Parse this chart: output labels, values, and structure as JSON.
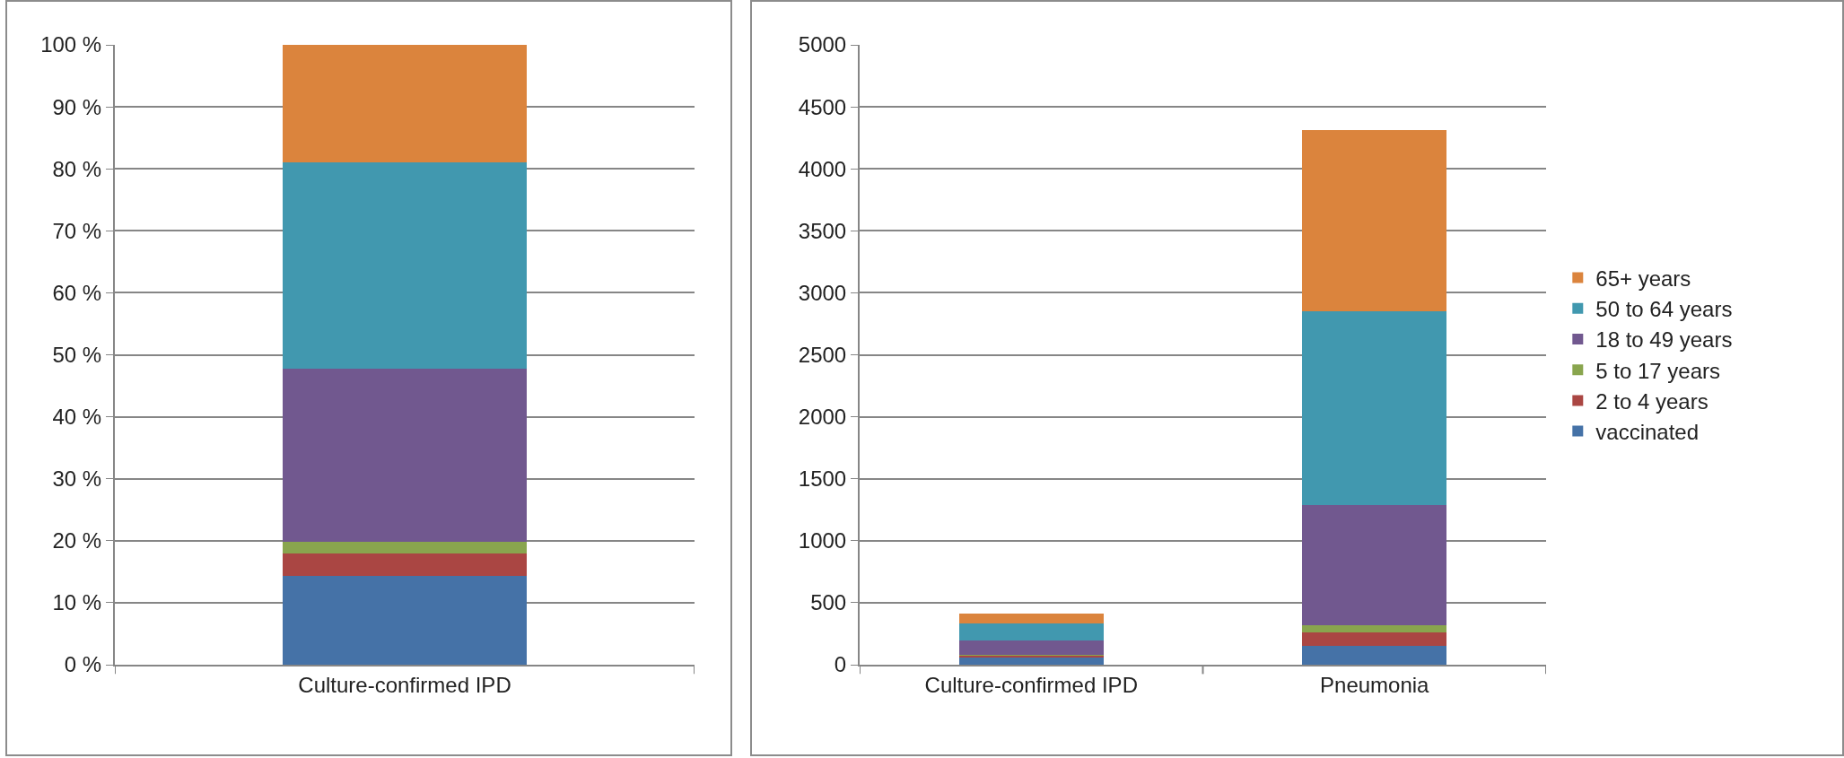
{
  "chart_data": [
    {
      "type": "bar",
      "stacked": true,
      "categories": [
        "Culture-confirmed IPD"
      ],
      "ylim": [
        0,
        100
      ],
      "yticks": [
        {
          "value": 0,
          "label": "0 %"
        },
        {
          "value": 10,
          "label": "10 %"
        },
        {
          "value": 20,
          "label": "20 %"
        },
        {
          "value": 30,
          "label": "30 %"
        },
        {
          "value": 40,
          "label": "40 %"
        },
        {
          "value": 50,
          "label": "50 %"
        },
        {
          "value": 60,
          "label": "60 %"
        },
        {
          "value": 70,
          "label": "70 %"
        },
        {
          "value": 80,
          "label": "80 %"
        },
        {
          "value": 90,
          "label": "90 %"
        },
        {
          "value": 100,
          "label": "100 %"
        }
      ],
      "grid": "y",
      "legend": false,
      "series": [
        {
          "color": "#4572a7",
          "values": [
            14.4
          ]
        },
        {
          "color": "#aa4643",
          "values": [
            3.5
          ]
        },
        {
          "color": "#89a54e",
          "values": [
            1.9
          ]
        },
        {
          "color": "#71588f",
          "values": [
            27.9
          ]
        },
        {
          "color": "#4198af",
          "values": [
            33.3
          ]
        },
        {
          "color": "#db843d",
          "values": [
            19.0
          ]
        }
      ]
    },
    {
      "type": "bar",
      "stacked": true,
      "categories": [
        "Culture-confirmed IPD",
        "Pneumonia"
      ],
      "ylim": [
        0,
        5000
      ],
      "yticks": [
        0,
        500,
        1000,
        1500,
        2000,
        2500,
        3000,
        3500,
        4000,
        4500,
        5000
      ],
      "grid": "y",
      "legend": "right",
      "series": [
        {
          "name": "vaccinated",
          "color": "#4572a7",
          "values": [
            59,
            151
          ]
        },
        {
          "name": "2 to 4 years",
          "color": "#aa4643",
          "values": [
            15,
            110
          ]
        },
        {
          "name": "5 to 17 years",
          "color": "#89a54e",
          "values": [
            8,
            55
          ]
        },
        {
          "name": "18 to 49 years",
          "color": "#71588f",
          "values": [
            115,
            971
          ]
        },
        {
          "name": "50 to 64 years",
          "color": "#4198af",
          "values": [
            137,
            1566
          ]
        },
        {
          "name": "65+ years",
          "color": "#db843d",
          "values": [
            78,
            1459
          ]
        }
      ]
    }
  ]
}
